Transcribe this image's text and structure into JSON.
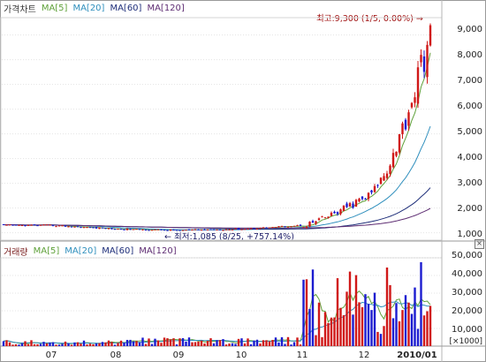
{
  "price_panel": {
    "title": "가격차트",
    "ma_labels": [
      "MA[5]",
      "MA[20]",
      "MA[60]",
      "MA[120]"
    ],
    "y_ticks": [
      "9,000",
      "8,000",
      "7,000",
      "6,000",
      "5,000",
      "4,000",
      "3,000",
      "2,000",
      "1,000"
    ],
    "high_annotation": "최고:9,300 (1/5, 0.00%)",
    "low_annotation": "최저:1,085 (8/25, +757.14%)"
  },
  "volume_panel": {
    "title": "거래량",
    "ma_labels": [
      "MA[5]",
      "MA[20]",
      "MA[60]",
      "MA[120]"
    ],
    "y_ticks": [
      "50,000",
      "40,000",
      "30,000",
      "20,000",
      "10,000"
    ],
    "unit_label": "[×1000]"
  },
  "x_axis": {
    "labels": [
      "07",
      "08",
      "09",
      "10",
      "11",
      "12",
      "2010/01"
    ]
  },
  "colors": {
    "up_candle": "#d01818",
    "down_candle": "#1c1cd0",
    "ma5": "#5fa13a",
    "ma20": "#2f8fbd",
    "ma60": "#1f2f7a",
    "ma120": "#5e2d73"
  },
  "chart_data": {
    "type": "candlestick",
    "price_close": {
      "x": [
        "07",
        "08",
        "09",
        "10",
        "11",
        "12",
        "2010/01"
      ],
      "values": [
        1300,
        1150,
        1100,
        1150,
        1300,
        2400,
        9300
      ]
    },
    "price_high": 9300,
    "price_low": 1085,
    "ylim_price": [
      700,
      9700
    ],
    "volume": {
      "x": [
        "07",
        "08",
        "09",
        "10",
        "11",
        "12",
        "2010/01"
      ],
      "values": [
        2000,
        2000,
        3000,
        3000,
        3000,
        15000,
        18000
      ],
      "ylim": [
        0,
        55000
      ]
    }
  }
}
